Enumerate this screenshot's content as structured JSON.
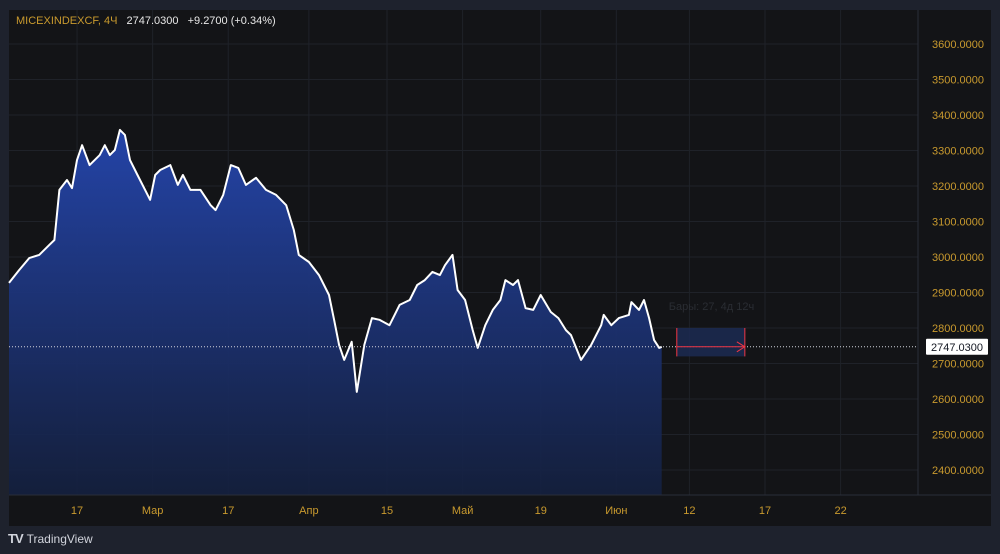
{
  "header": {
    "symbol": "MICEXINDEXCF, 4Ч",
    "last": "2747.0300",
    "change": "+9.2700 (+0.34%)"
  },
  "brand": {
    "name": "TradingView"
  },
  "colors": {
    "line": "#ffffff",
    "fill_top": "#2444a8",
    "axis_text": "#c99a2e",
    "measure": "#f23645"
  },
  "measure": {
    "label": "Бары: 27, 4д 12ч",
    "bars": 27
  },
  "chart_data": {
    "type": "area",
    "title": "MICEXINDEXCF, 4Ч",
    "ylim": [
      2340,
      3660
    ],
    "y_ticks": [
      2400,
      2500,
      2600,
      2700,
      2800,
      2900,
      3000,
      3100,
      3200,
      3300,
      3400,
      3500,
      3600
    ],
    "y_tick_labels": [
      "2400.0000",
      "2500.0000",
      "2600.0000",
      "2700.0000",
      "2800.0000",
      "2900.0000",
      "3000.0000",
      "3100.0000",
      "3200.0000",
      "3300.0000",
      "3400.0000",
      "3500.0000",
      "3600.0000"
    ],
    "x_ticks": [
      {
        "bar": 27,
        "label": "17"
      },
      {
        "bar": 57,
        "label": "Мар"
      },
      {
        "bar": 87,
        "label": "17"
      },
      {
        "bar": 119,
        "label": "Апр"
      },
      {
        "bar": 150,
        "label": "15"
      },
      {
        "bar": 180,
        "label": "Май"
      },
      {
        "bar": 211,
        "label": "19"
      },
      {
        "bar": 241,
        "label": "Июн"
      },
      {
        "bar": 270,
        "label": "12"
      },
      {
        "bar": 300,
        "label": "17"
      },
      {
        "bar": 330,
        "label": "22"
      }
    ],
    "current_price": 2747.03,
    "current_price_label": "2747.0300",
    "series": [
      [
        0,
        2927
      ],
      [
        4,
        2963
      ],
      [
        8,
        2997
      ],
      [
        12,
        3006
      ],
      [
        16,
        3034
      ],
      [
        18,
        3048
      ],
      [
        20,
        3189
      ],
      [
        23,
        3217
      ],
      [
        25,
        3194
      ],
      [
        27,
        3273
      ],
      [
        29,
        3315
      ],
      [
        32,
        3259
      ],
      [
        36,
        3287
      ],
      [
        38,
        3315
      ],
      [
        40,
        3287
      ],
      [
        42,
        3301
      ],
      [
        44,
        3358
      ],
      [
        46,
        3344
      ],
      [
        48,
        3273
      ],
      [
        51,
        3231
      ],
      [
        54,
        3189
      ],
      [
        56,
        3161
      ],
      [
        58,
        3231
      ],
      [
        60,
        3245
      ],
      [
        64,
        3259
      ],
      [
        67,
        3203
      ],
      [
        69,
        3231
      ],
      [
        72,
        3189
      ],
      [
        76,
        3189
      ],
      [
        80,
        3146
      ],
      [
        82,
        3132
      ],
      [
        85,
        3175
      ],
      [
        88,
        3259
      ],
      [
        91,
        3251
      ],
      [
        94,
        3203
      ],
      [
        98,
        3223
      ],
      [
        102,
        3189
      ],
      [
        106,
        3175
      ],
      [
        110,
        3146
      ],
      [
        113,
        3076
      ],
      [
        115,
        3006
      ],
      [
        119,
        2986
      ],
      [
        123,
        2949
      ],
      [
        127,
        2893
      ],
      [
        129,
        2823
      ],
      [
        131,
        2752
      ],
      [
        133,
        2710
      ],
      [
        136,
        2761
      ],
      [
        138,
        2620
      ],
      [
        141,
        2752
      ],
      [
        144,
        2828
      ],
      [
        147,
        2823
      ],
      [
        151,
        2808
      ],
      [
        155,
        2865
      ],
      [
        159,
        2879
      ],
      [
        162,
        2921
      ],
      [
        165,
        2935
      ],
      [
        168,
        2958
      ],
      [
        171,
        2949
      ],
      [
        173,
        2977
      ],
      [
        176,
        3006
      ],
      [
        178,
        2907
      ],
      [
        181,
        2879
      ],
      [
        184,
        2794
      ],
      [
        186,
        2744
      ],
      [
        189,
        2808
      ],
      [
        192,
        2851
      ],
      [
        195,
        2879
      ],
      [
        197,
        2935
      ],
      [
        200,
        2921
      ],
      [
        202,
        2935
      ],
      [
        205,
        2856
      ],
      [
        208,
        2851
      ],
      [
        211,
        2893
      ],
      [
        215,
        2845
      ],
      [
        218,
        2828
      ],
      [
        221,
        2794
      ],
      [
        223,
        2780
      ],
      [
        227,
        2710
      ],
      [
        231,
        2752
      ],
      [
        235,
        2808
      ],
      [
        236,
        2837
      ],
      [
        239,
        2808
      ],
      [
        242,
        2828
      ],
      [
        246,
        2837
      ],
      [
        247,
        2873
      ],
      [
        250,
        2851
      ],
      [
        252,
        2879
      ],
      [
        254,
        2828
      ],
      [
        256,
        2766
      ],
      [
        258,
        2744
      ],
      [
        259,
        2747.03
      ]
    ],
    "measure_range": {
      "from_bar": 265,
      "to_bar": 292,
      "low": 2720,
      "high": 2800
    }
  }
}
